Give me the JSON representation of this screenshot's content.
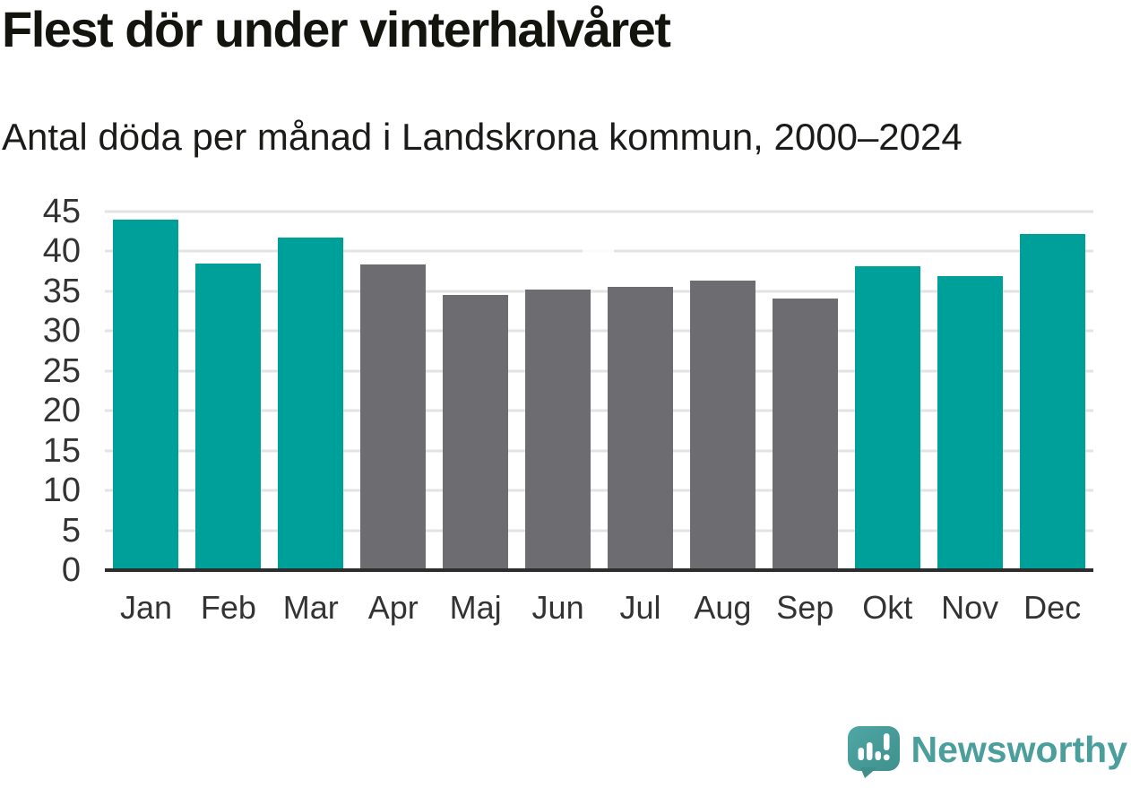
{
  "header": {
    "title": "Flest dör under vinterhalvåret",
    "subtitle": "Antal döda per månad i Landskrona kommun, 2000–2024"
  },
  "chart_data": {
    "type": "bar",
    "title": "Flest dör under vinterhalvåret",
    "subtitle": "Antal döda per månad i Landskrona kommun, 2000–2024",
    "categories": [
      "Jan",
      "Feb",
      "Mar",
      "Apr",
      "Maj",
      "Jun",
      "Jul",
      "Aug",
      "Sep",
      "Okt",
      "Nov",
      "Dec"
    ],
    "values": [
      44.0,
      38.5,
      41.7,
      38.4,
      34.5,
      35.2,
      35.6,
      36.3,
      34.1,
      38.1,
      36.9,
      42.2
    ],
    "bar_groups": [
      "winter",
      "winter",
      "winter",
      "summer",
      "summer",
      "summer",
      "summer",
      "summer",
      "summer",
      "winter",
      "winter",
      "winter"
    ],
    "palette": {
      "winter": "#00A09A",
      "summer": "#6C6C71"
    },
    "xlabel": "",
    "ylabel": "",
    "ylim": [
      0,
      45
    ],
    "yticks": [
      0,
      5,
      10,
      15,
      20,
      25,
      30,
      35,
      40,
      45
    ],
    "grid": true,
    "gridline_color": "#e3e3e3",
    "axis_line_color": "#2d2d2d",
    "tick_label_color": "#333333",
    "legend": "none"
  },
  "footer": {
    "brand": "Newsworthy",
    "brand_color": "#4a9e9b",
    "logo_gradient": [
      "#4FA7A3",
      "#3F908D"
    ]
  }
}
